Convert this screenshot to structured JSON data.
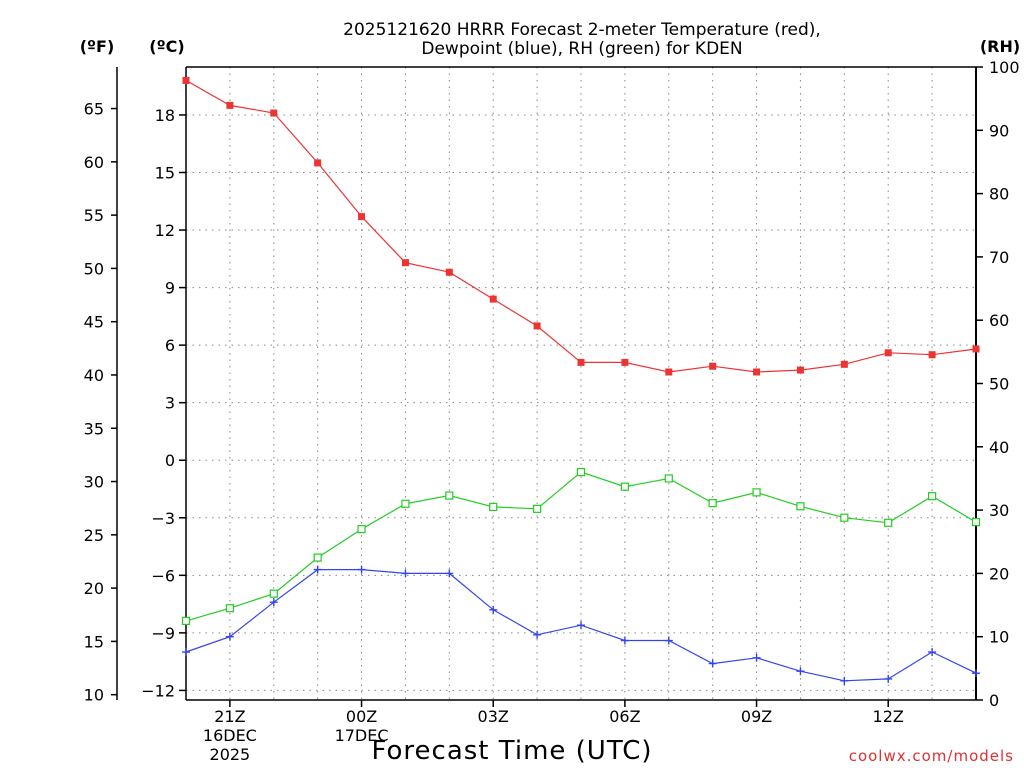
{
  "chart_data": {
    "type": "line",
    "title_line1": "2025121620 HRRR Forecast 2-meter Temperature (red),",
    "title_line2": "Dewpoint (blue), RH (green) for KDEN",
    "xlabel": "Forecast Time (UTC)",
    "credit": "coolwx.com/models",
    "axis_units": {
      "fahrenheit": "(ºF)",
      "celsius": "(ºC)",
      "rh": "(RH)"
    },
    "x_hours": [
      20,
      21,
      22,
      23,
      24,
      25,
      26,
      27,
      28,
      29,
      30,
      31,
      32,
      33,
      34,
      35,
      36,
      37,
      38
    ],
    "xlim": [
      20,
      38
    ],
    "x_ticks": [
      {
        "hour": 21,
        "label": "21Z",
        "date": "16DEC",
        "year": "2025"
      },
      {
        "hour": 24,
        "label": "00Z",
        "date": "17DEC",
        "year": ""
      },
      {
        "hour": 27,
        "label": "03Z",
        "date": "",
        "year": ""
      },
      {
        "hour": 30,
        "label": "06Z",
        "date": "",
        "year": ""
      },
      {
        "hour": 33,
        "label": "09Z",
        "date": "",
        "year": ""
      },
      {
        "hour": 36,
        "label": "12Z",
        "date": "",
        "year": ""
      }
    ],
    "ylim_celsius": [
      -12.5,
      20.5
    ],
    "celsius_ticks": [
      18,
      15,
      12,
      9,
      6,
      3,
      0,
      -3,
      -6,
      -9,
      -12
    ],
    "celsius_tick_labels": [
      "18",
      "15",
      "12",
      "9",
      "6",
      "3",
      "0",
      "−3",
      "−6",
      "−9",
      "−12"
    ],
    "fahrenheit_ticks": [
      65,
      60,
      55,
      50,
      45,
      40,
      35,
      30,
      25,
      20,
      15,
      10
    ],
    "rh_ticks": [
      100,
      90,
      80,
      70,
      60,
      50,
      40,
      30,
      20,
      10,
      0
    ],
    "ylim_rh": [
      0,
      100
    ],
    "series": [
      {
        "name": "Temperature",
        "axis": "celsius",
        "color": "#ee3333",
        "marker": "filled-square",
        "values": [
          19.8,
          18.5,
          18.1,
          15.5,
          12.7,
          10.3,
          9.8,
          8.4,
          7.0,
          5.1,
          5.1,
          4.6,
          4.9,
          4.6,
          4.7,
          5.0,
          5.6,
          5.5,
          5.8
        ]
      },
      {
        "name": "Dewpoint",
        "axis": "celsius",
        "color": "#3344ee",
        "marker": "plus",
        "values": [
          -10.0,
          -9.2,
          -7.4,
          -5.7,
          -5.7,
          -5.9,
          -5.9,
          -7.8,
          -9.1,
          -8.6,
          -9.4,
          -9.4,
          -10.6,
          -10.3,
          -11.0,
          -11.5,
          -11.4,
          -10.0,
          -11.1
        ]
      },
      {
        "name": "RH",
        "axis": "rh",
        "color": "#22cc22",
        "marker": "open-square",
        "values": [
          12.5,
          14.5,
          16.8,
          22.5,
          27.0,
          31.0,
          32.3,
          30.5,
          30.2,
          36.0,
          33.7,
          35.0,
          31.1,
          32.8,
          30.6,
          28.8,
          28.0,
          32.2,
          28.1
        ]
      }
    ]
  }
}
